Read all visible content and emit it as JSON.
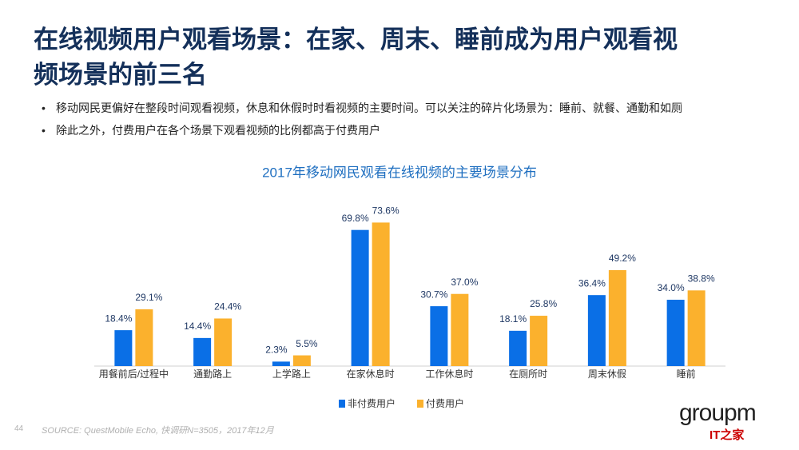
{
  "slide": {
    "title_lines": [
      "在线视频用户观看场景：在家、周末、睡前成为用户观看视",
      "频场景的前三名"
    ],
    "bullets": [
      "移动网民更偏好在整段时间观看视频，休息和休假时时看视频的主要时间。可以关注的碎片化场景为：睡前、就餐、通勤和如厕",
      "除此之外，付费用户在各个场景下观看视频的比例都高于付费用户"
    ],
    "source": "SOURCE: QuestMobile Echo, 快调研N=3505，2017年12月",
    "page_number": "44",
    "logo": "groupm",
    "logo_sub": "IT之家"
  },
  "chart_data": {
    "type": "bar",
    "title": "2017年移动网民观看在线视频的主要场景分布",
    "categories": [
      "用餐前后/过程中",
      "通勤路上",
      "上学路上",
      "在家休息时",
      "工作休息时",
      "在厕所时",
      "周末休假",
      "睡前"
    ],
    "series": [
      {
        "name": "非付费用户",
        "color": "#0a6fe6",
        "values": [
          18.4,
          14.4,
          2.3,
          69.8,
          30.7,
          18.1,
          36.4,
          34.0
        ],
        "value_labels": [
          "18.4%",
          "14.4%",
          "2.3%",
          "69.8%",
          "30.7%",
          "18.1%",
          "36.4%",
          "34.0%"
        ]
      },
      {
        "name": "付费用户",
        "color": "#fbb12d",
        "values": [
          29.1,
          24.4,
          5.5,
          73.6,
          37.0,
          25.8,
          49.2,
          38.8
        ],
        "value_labels": [
          "29.1%",
          "24.4%",
          "5.5%",
          "73.6%",
          "37.0%",
          "25.8%",
          "49.2%",
          "38.8%"
        ]
      }
    ],
    "legend": "bottom"
  }
}
